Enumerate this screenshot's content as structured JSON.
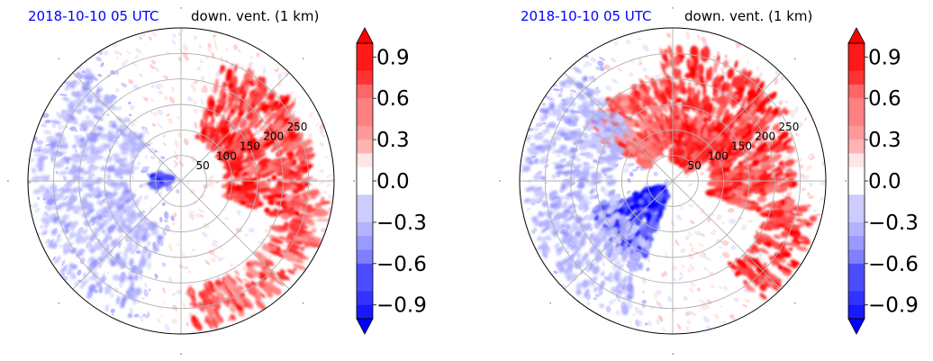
{
  "chart_data": [
    {
      "type": "heatmap",
      "projection": "polar",
      "title_left": "2018-10-10 05 UTC",
      "title_right": "down. vent. (1 km)",
      "radial_ticks": [
        50,
        100,
        150,
        200,
        250
      ],
      "radial_range": [
        0,
        300
      ],
      "grid": true,
      "colormap": "bwr",
      "colorbar": {
        "range": [
          -1.0,
          1.0
        ],
        "ticks": [
          0.9,
          0.6,
          0.3,
          0.0,
          -0.3,
          -0.6,
          -0.9
        ],
        "tick_labels": [
          "0.9",
          "0.6",
          "0.3",
          "0.0",
          "−0.3",
          "−0.6",
          "−0.9"
        ],
        "extend": "both"
      },
      "features": [
        {
          "sign": "positive",
          "azimuth_deg": [
            20,
            110
          ],
          "range_km": [
            90,
            250
          ],
          "intensity": 1.0
        },
        {
          "sign": "positive",
          "azimuth_deg": [
            50,
            80
          ],
          "range_km": [
            200,
            260
          ],
          "intensity": 0.9
        },
        {
          "sign": "positive",
          "azimuth_deg": [
            95,
            175
          ],
          "range_km": [
            210,
            290
          ],
          "intensity": 0.8
        },
        {
          "sign": "negative",
          "azimuth_deg": [
            255,
            290
          ],
          "range_km": [
            25,
            55
          ],
          "intensity": 0.9
        },
        {
          "sign": "negative",
          "azimuth_deg": [
            200,
            320
          ],
          "range_km": [
            100,
            290
          ],
          "intensity": 0.35
        }
      ]
    },
    {
      "type": "heatmap",
      "projection": "polar",
      "title_left": "2018-10-10 05 UTC",
      "title_right": "down. vent. (1 km)",
      "radial_ticks": [
        50,
        100,
        150,
        200,
        250
      ],
      "radial_range": [
        0,
        300
      ],
      "grid": true,
      "colormap": "bwr",
      "colorbar": {
        "range": [
          -1.0,
          1.0
        ],
        "ticks": [
          0.9,
          0.6,
          0.3,
          0.0,
          -0.3,
          -0.6,
          -0.9
        ],
        "tick_labels": [
          "0.9",
          "0.6",
          "0.3",
          "0.0",
          "−0.3",
          "−0.6",
          "−0.9"
        ],
        "extend": "both"
      },
      "features": [
        {
          "sign": "positive",
          "azimuth_deg": [
            355,
            60
          ],
          "range_km": [
            40,
            260
          ],
          "intensity": 1.0
        },
        {
          "sign": "positive",
          "azimuth_deg": [
            60,
            110
          ],
          "range_km": [
            80,
            240
          ],
          "intensity": 1.0
        },
        {
          "sign": "positive",
          "azimuth_deg": [
            100,
            145
          ],
          "range_km": [
            200,
            290
          ],
          "intensity": 1.0
        },
        {
          "sign": "positive",
          "azimuth_deg": [
            300,
            355
          ],
          "range_km": [
            60,
            200
          ],
          "intensity": 0.8
        },
        {
          "sign": "negative",
          "azimuth_deg": [
            200,
            250
          ],
          "range_km": [
            30,
            170
          ],
          "intensity": 1.0
        },
        {
          "sign": "negative",
          "azimuth_deg": [
            200,
            320
          ],
          "range_km": [
            120,
            290
          ],
          "intensity": 0.35
        }
      ]
    }
  ]
}
